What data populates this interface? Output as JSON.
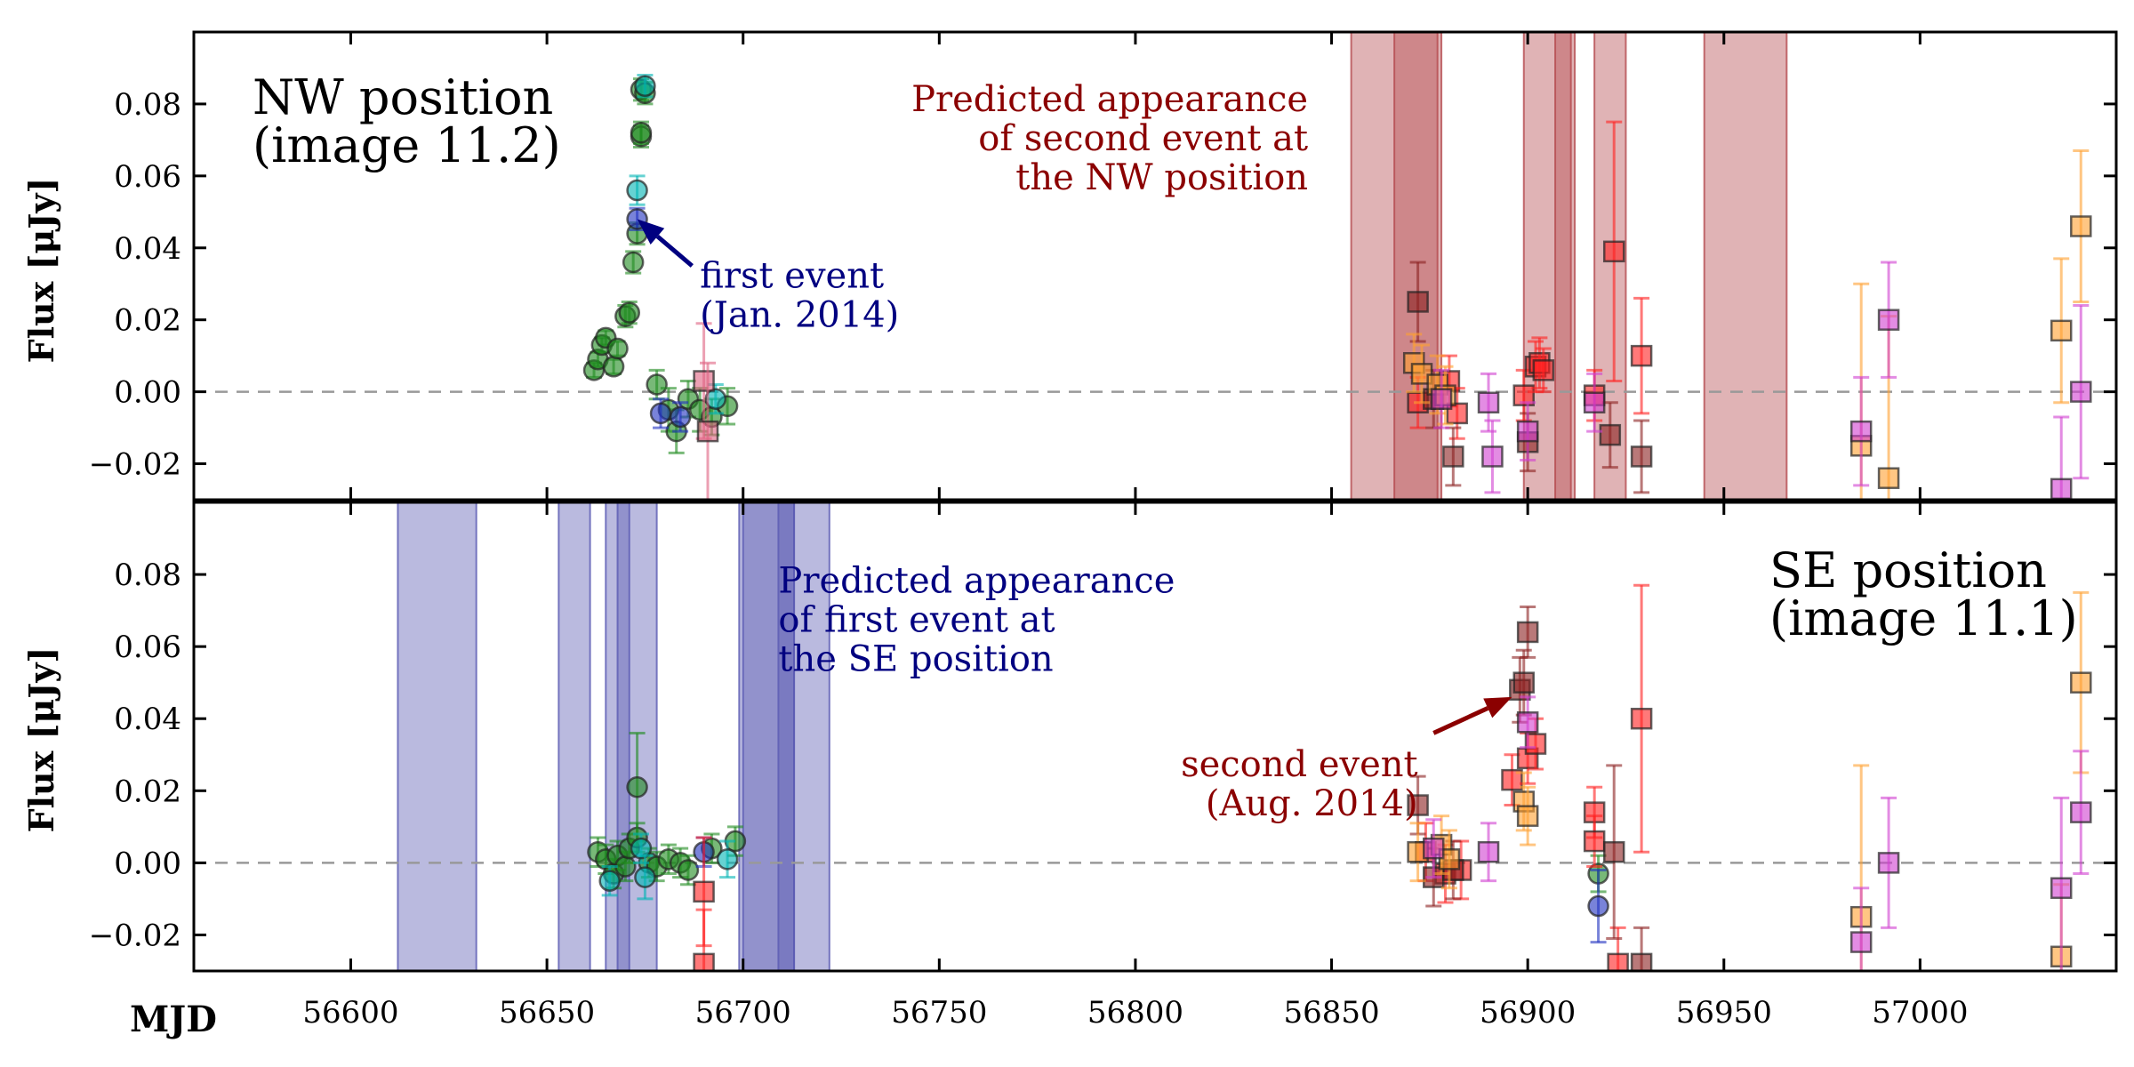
{
  "chart_data": [
    {
      "type": "scatter",
      "panel": "top",
      "ylabel": "Flux [μJy]",
      "xlim": [
        56560,
        57050
      ],
      "ylim": [
        -0.03,
        0.1
      ],
      "yticks": [
        "0.08",
        "0.06",
        "0.04",
        "0.02",
        "0.00",
        "−0.02"
      ],
      "ytick_values": [
        0.08,
        0.06,
        0.04,
        0.02,
        0.0,
        -0.02
      ],
      "zero_line": true,
      "label": [
        "NW position",
        "(image 11.2)"
      ],
      "annotations": [
        {
          "lines": [
            "first event",
            "(Jan. 2014)"
          ],
          "color": "#000080",
          "arrow_to": [
            56673,
            0.048
          ],
          "arrow_from": [
            56687,
            0.035
          ],
          "text_at": [
            56689,
            0.029
          ]
        },
        {
          "lines": [
            "Predicted appearance",
            "of second event at",
            "the NW position"
          ],
          "color": "#8b0000",
          "align": "right",
          "text_at": [
            56844,
            0.078
          ]
        }
      ],
      "shaded_bands": {
        "color": "#b44a4f",
        "ranges": [
          [
            56855,
            56877
          ],
          [
            56866,
            56878
          ],
          [
            56899,
            56911
          ],
          [
            56907,
            56912
          ],
          [
            56917,
            56925
          ],
          [
            56945,
            56966
          ]
        ]
      },
      "series": [
        {
          "marker": "circle",
          "color": "#1e8a1e",
          "points": [
            [
              56662,
              0.006,
              0.002
            ],
            [
              56663,
              0.009,
              0.002
            ],
            [
              56664,
              0.013,
              0.002
            ],
            [
              56665,
              0.015,
              0.002
            ],
            [
              56667,
              0.007,
              0.002
            ],
            [
              56668,
              0.012,
              0.002
            ],
            [
              56670,
              0.021,
              0.003
            ],
            [
              56671,
              0.022,
              0.003
            ],
            [
              56672,
              0.036,
              0.003
            ],
            [
              56673,
              0.044,
              0.003
            ],
            [
              56674,
              0.071,
              0.003
            ],
            [
              56674,
              0.072,
              0.003
            ],
            [
              56674,
              0.084,
              0.003
            ],
            [
              56675,
              0.083,
              0.003
            ],
            [
              56678,
              0.002,
              0.004
            ],
            [
              56681,
              -0.005,
              0.006
            ],
            [
              56683,
              -0.011,
              0.006
            ],
            [
              56686,
              -0.002,
              0.005
            ],
            [
              56689,
              -0.005,
              0.006
            ],
            [
              56692,
              -0.007,
              0.005
            ],
            [
              56696,
              -0.004,
              0.005
            ]
          ]
        },
        {
          "marker": "circle",
          "color": "#00b4b4",
          "points": [
            [
              56673,
              0.056,
              0.004
            ],
            [
              56675,
              0.085,
              0.003
            ],
            [
              56693,
              -0.002,
              0.004
            ]
          ]
        },
        {
          "marker": "circle",
          "color": "#2030c0",
          "points": [
            [
              56673,
              0.048,
              0.003
            ],
            [
              56679,
              -0.006,
              0.004
            ],
            [
              56684,
              -0.007,
              0.004
            ]
          ]
        },
        {
          "marker": "square",
          "color": "#e06080",
          "points": [
            [
              56690,
              0.003,
              0.016
            ],
            [
              56691,
              -0.011,
              0.019
            ]
          ]
        },
        {
          "marker": "square",
          "color": "#ff2020",
          "points": [
            [
              56872,
              -0.003,
              0.007
            ],
            [
              56880,
              0.003,
              0.007
            ],
            [
              56882,
              -0.006,
              0.007
            ],
            [
              56899,
              -0.001,
              0.007
            ],
            [
              56902,
              0.007,
              0.007
            ],
            [
              56903,
              0.008,
              0.007
            ],
            [
              56904,
              0.006,
              0.006
            ],
            [
              56917,
              -0.001,
              0.007
            ],
            [
              56922,
              0.039,
              0.036
            ],
            [
              56929,
              0.01,
              0.016
            ]
          ]
        },
        {
          "marker": "square",
          "color": "#8b2020",
          "points": [
            [
              56872,
              0.025,
              0.011
            ],
            [
              56876,
              -0.002,
              0.008
            ],
            [
              56881,
              -0.018,
              0.008
            ],
            [
              56900,
              -0.014,
              0.008
            ],
            [
              56921,
              -0.012,
              0.009
            ],
            [
              56929,
              -0.018,
              0.01
            ]
          ]
        },
        {
          "marker": "square",
          "color": "#ffa030",
          "points": [
            [
              56871,
              0.008,
              0.008
            ],
            [
              56873,
              0.005,
              0.008
            ],
            [
              56877,
              0.002,
              0.008
            ],
            [
              56879,
              -0.001,
              0.008
            ],
            [
              56985,
              -0.015,
              0.045
            ],
            [
              56992,
              -0.024,
              0.045
            ],
            [
              57036,
              0.017,
              0.02
            ],
            [
              57041,
              0.046,
              0.021
            ]
          ]
        },
        {
          "marker": "square",
          "color": "#d040d0",
          "points": [
            [
              56878,
              -0.002,
              0.008
            ],
            [
              56890,
              -0.003,
              0.008
            ],
            [
              56891,
              -0.018,
              0.01
            ],
            [
              56900,
              -0.011,
              0.008
            ],
            [
              56917,
              -0.003,
              0.008
            ],
            [
              56985,
              -0.011,
              0.015
            ],
            [
              56992,
              0.02,
              0.016
            ],
            [
              57036,
              -0.027,
              0.02
            ],
            [
              57041,
              0.0,
              0.024
            ]
          ]
        }
      ]
    },
    {
      "type": "scatter",
      "panel": "bottom",
      "ylabel": "Flux [μJy]",
      "xlabel": "MJD",
      "xlim": [
        56560,
        57050
      ],
      "ylim": [
        -0.03,
        0.1
      ],
      "xticks": [
        "56600",
        "56650",
        "56700",
        "56750",
        "56800",
        "56850",
        "56900",
        "56950",
        "57000"
      ],
      "xtick_values": [
        56600,
        56650,
        56700,
        56750,
        56800,
        56850,
        56900,
        56950,
        57000
      ],
      "yticks": [
        "0.08",
        "0.06",
        "0.04",
        "0.02",
        "0.00",
        "−0.02"
      ],
      "ytick_values": [
        0.08,
        0.06,
        0.04,
        0.02,
        0.0,
        -0.02
      ],
      "zero_line": true,
      "label": [
        "SE position",
        "(image 11.1)"
      ],
      "annotations": [
        {
          "lines": [
            "Predicted appearance",
            "of first event at",
            "the SE position"
          ],
          "color": "#000080",
          "text_at": [
            56709,
            0.075
          ]
        },
        {
          "lines": [
            "second event",
            "(Aug. 2014)"
          ],
          "color": "#8b0000",
          "align": "right",
          "arrow_to": [
            56896,
            0.046
          ],
          "arrow_from": [
            56876,
            0.036
          ],
          "text_at": [
            56872,
            0.024
          ]
        }
      ],
      "shaded_bands": {
        "color": "#5b5bb3",
        "ranges": [
          [
            56612,
            56632
          ],
          [
            56653,
            56661
          ],
          [
            56665,
            56678
          ],
          [
            56668,
            56671
          ],
          [
            56699,
            56713
          ],
          [
            56700,
            56713
          ],
          [
            56709,
            56722
          ]
        ]
      },
      "series": [
        {
          "marker": "circle",
          "color": "#1e8a1e",
          "points": [
            [
              56663,
              0.003,
              0.004
            ],
            [
              56665,
              0.001,
              0.004
            ],
            [
              56667,
              -0.003,
              0.004
            ],
            [
              56668,
              0.002,
              0.004
            ],
            [
              56670,
              -0.001,
              0.004
            ],
            [
              56671,
              0.004,
              0.004
            ],
            [
              56673,
              0.007,
              0.004
            ],
            [
              56673,
              0.021,
              0.015
            ],
            [
              56676,
              0.0,
              0.004
            ],
            [
              56678,
              -0.001,
              0.004
            ],
            [
              56681,
              0.001,
              0.004
            ],
            [
              56684,
              0.0,
              0.004
            ],
            [
              56686,
              -0.002,
              0.004
            ],
            [
              56692,
              0.004,
              0.004
            ],
            [
              56698,
              0.006,
              0.004
            ],
            [
              56918,
              -0.003,
              0.005
            ]
          ]
        },
        {
          "marker": "circle",
          "color": "#00b4b4",
          "points": [
            [
              56666,
              -0.005,
              0.004
            ],
            [
              56674,
              0.004,
              0.004
            ],
            [
              56675,
              -0.004,
              0.006
            ],
            [
              56696,
              0.001,
              0.005
            ]
          ]
        },
        {
          "marker": "circle",
          "color": "#2030c0",
          "points": [
            [
              56690,
              0.003,
              0.004
            ],
            [
              56918,
              -0.012,
              0.01
            ]
          ]
        },
        {
          "marker": "square",
          "color": "#ff2020",
          "points": [
            [
              56690,
              -0.008,
              0.015
            ],
            [
              56690,
              -0.028,
              0.015
            ],
            [
              56874,
              0.003,
              0.008
            ],
            [
              56879,
              -0.003,
              0.008
            ],
            [
              56883,
              -0.002,
              0.008
            ],
            [
              56896,
              0.023,
              0.007
            ],
            [
              56900,
              0.029,
              0.007
            ],
            [
              56902,
              0.033,
              0.007
            ],
            [
              56917,
              0.014,
              0.007
            ],
            [
              56917,
              0.006,
              0.007
            ],
            [
              56923,
              -0.028,
              0.01
            ],
            [
              56929,
              0.04,
              0.037
            ]
          ]
        },
        {
          "marker": "square",
          "color": "#8b2020",
          "points": [
            [
              56872,
              0.016,
              0.008
            ],
            [
              56876,
              -0.004,
              0.008
            ],
            [
              56881,
              -0.002,
              0.008
            ],
            [
              56898,
              0.048,
              0.009
            ],
            [
              56899,
              0.05,
              0.009
            ],
            [
              56900,
              0.064,
              0.007
            ],
            [
              56922,
              0.003,
              0.024
            ],
            [
              56929,
              -0.028,
              0.01
            ]
          ]
        },
        {
          "marker": "square",
          "color": "#ffa030",
          "points": [
            [
              56872,
              0.003,
              0.008
            ],
            [
              56878,
              0.005,
              0.008
            ],
            [
              56880,
              0.001,
              0.008
            ],
            [
              56899,
              0.017,
              0.008
            ],
            [
              56900,
              0.013,
              0.008
            ],
            [
              56985,
              -0.015,
              0.042
            ],
            [
              57036,
              -0.026,
              0.02
            ],
            [
              57041,
              0.05,
              0.025
            ]
          ]
        },
        {
          "marker": "square",
          "color": "#d040d0",
          "points": [
            [
              56876,
              0.004,
              0.008
            ],
            [
              56890,
              0.003,
              0.008
            ],
            [
              56900,
              0.039,
              0.007
            ],
            [
              56985,
              -0.022,
              0.015
            ],
            [
              56992,
              0.0,
              0.018
            ],
            [
              57036,
              -0.007,
              0.025
            ],
            [
              57041,
              0.014,
              0.017
            ]
          ]
        }
      ]
    }
  ]
}
